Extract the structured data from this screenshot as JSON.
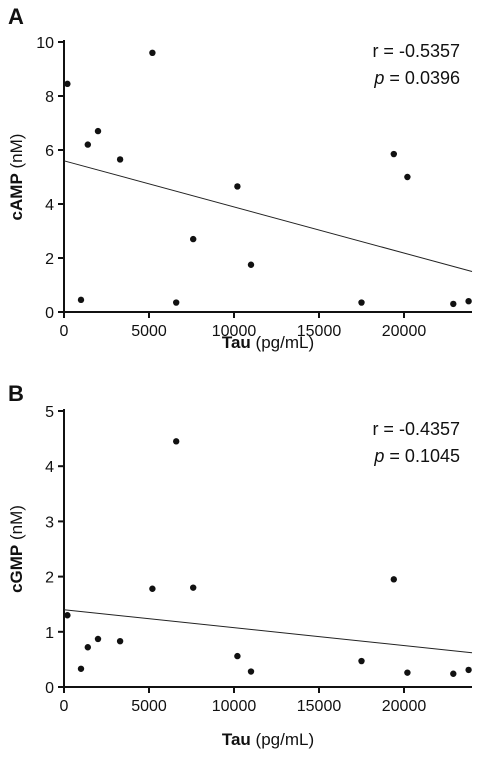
{
  "chart_data": [
    {
      "type": "scatter",
      "panel_label": "A",
      "xlabel_bold": "Tau",
      "xlabel_unit": " (pg/mL)",
      "ylabel_bold": "cAMP",
      "ylabel_unit": " (nM)",
      "xlim": [
        0,
        24000
      ],
      "ylim": [
        0,
        10
      ],
      "xticks": [
        0,
        5000,
        10000,
        15000,
        20000
      ],
      "yticks": [
        0,
        2,
        4,
        6,
        8,
        10
      ],
      "stat_r": "r = -0.5357",
      "stat_p_symbol": "p",
      "stat_p_value": " = 0.0396",
      "points": [
        {
          "x": 200,
          "y": 8.45
        },
        {
          "x": 1000,
          "y": 0.45
        },
        {
          "x": 1400,
          "y": 6.2
        },
        {
          "x": 2000,
          "y": 6.7
        },
        {
          "x": 3300,
          "y": 5.65
        },
        {
          "x": 5200,
          "y": 9.6
        },
        {
          "x": 6600,
          "y": 0.35
        },
        {
          "x": 7600,
          "y": 2.7
        },
        {
          "x": 10200,
          "y": 4.65
        },
        {
          "x": 11000,
          "y": 1.75
        },
        {
          "x": 17500,
          "y": 0.35
        },
        {
          "x": 19400,
          "y": 5.85
        },
        {
          "x": 20200,
          "y": 5.0
        },
        {
          "x": 22900,
          "y": 0.3
        },
        {
          "x": 23800,
          "y": 0.4
        }
      ],
      "fit_line": {
        "x": [
          0,
          24000
        ],
        "y": [
          5.6,
          1.5
        ]
      }
    },
    {
      "type": "scatter",
      "panel_label": "B",
      "xlabel_bold": "Tau",
      "xlabel_unit": " (pg/mL)",
      "ylabel_bold": "cGMP",
      "ylabel_unit": " (nM)",
      "xlim": [
        0,
        24000
      ],
      "ylim": [
        0,
        5
      ],
      "xticks": [
        0,
        5000,
        10000,
        15000,
        20000
      ],
      "yticks": [
        0,
        1,
        2,
        3,
        4,
        5
      ],
      "stat_r": "r = -0.4357",
      "stat_p_symbol": "p",
      "stat_p_value": " = 0.1045",
      "points": [
        {
          "x": 200,
          "y": 1.3
        },
        {
          "x": 1000,
          "y": 0.33
        },
        {
          "x": 1400,
          "y": 0.72
        },
        {
          "x": 2000,
          "y": 0.87
        },
        {
          "x": 3300,
          "y": 0.83
        },
        {
          "x": 5200,
          "y": 1.78
        },
        {
          "x": 6600,
          "y": 4.45
        },
        {
          "x": 7600,
          "y": 1.8
        },
        {
          "x": 10200,
          "y": 0.56
        },
        {
          "x": 11000,
          "y": 0.28
        },
        {
          "x": 17500,
          "y": 0.47
        },
        {
          "x": 19400,
          "y": 1.95
        },
        {
          "x": 20200,
          "y": 0.26
        },
        {
          "x": 22900,
          "y": 0.24
        },
        {
          "x": 23800,
          "y": 0.31
        }
      ],
      "fit_line": {
        "x": [
          0,
          24000
        ],
        "y": [
          1.4,
          0.62
        ]
      }
    }
  ]
}
